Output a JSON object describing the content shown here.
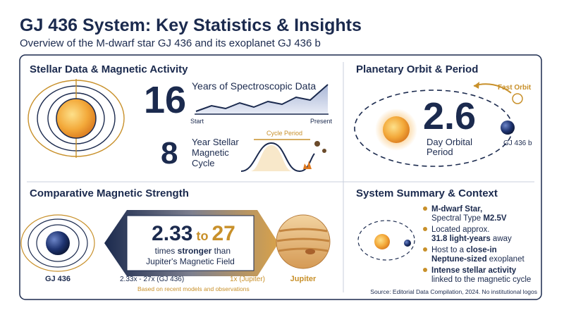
{
  "header": {
    "title": "GJ 436 System: Key Statistics & Insights",
    "subtitle": "Overview of the M-dwarf star GJ 436 and its exoplanet GJ 436 b"
  },
  "stellar_panel": {
    "heading": "Stellar Data & Magnetic Activity",
    "years_value": "16",
    "years_label": "Years of Spectroscopic Data",
    "axis_start": "Start",
    "axis_end": "Present",
    "cycle_value": "8",
    "cycle_label": [
      "Year Stellar",
      "Magnetic",
      "Cycle"
    ],
    "cycle_period_label": "Cycle Period"
  },
  "orbit_panel": {
    "heading": "Planetary Orbit & Period",
    "fast_orbit": "Fast Orbit",
    "period_value": "2.6",
    "period_label": [
      "Day Orbital",
      "Period"
    ],
    "planet_label": "GJ 436 b"
  },
  "magnetic_panel": {
    "heading": "Comparative Magnetic Strength",
    "range_low": "2.33",
    "range_to": "to",
    "range_high": "27",
    "caption_line1": [
      "times ",
      "stronger",
      " than"
    ],
    "caption_line2": "Jupiter's Magnetic Field",
    "star_label": "GJ 436",
    "scale_left": "2.33x - 27x (GJ 436)",
    "scale_right": "1x (Jupiter)",
    "planet_label": "Jupiter",
    "note": "Based on recent models and observations"
  },
  "summary_panel": {
    "heading": "System Summary & Context",
    "items": [
      [
        [
          "M-dwarf Star,"
        ],
        [
          "Spectral Type ",
          "M2.5V"
        ]
      ],
      [
        [
          "Located approx."
        ],
        [
          "31.8 light-years",
          " away"
        ]
      ],
      [
        [
          "Host to a ",
          "close-in"
        ],
        [
          "Neptune-sized",
          " exoplanet"
        ]
      ],
      [
        [
          "Intense stellar activity"
        ],
        [
          "linked to the magnetic cycle"
        ]
      ]
    ]
  },
  "footer": {
    "source": "Source: Editorial Data Compilation, 2024. No institutional logos"
  }
}
